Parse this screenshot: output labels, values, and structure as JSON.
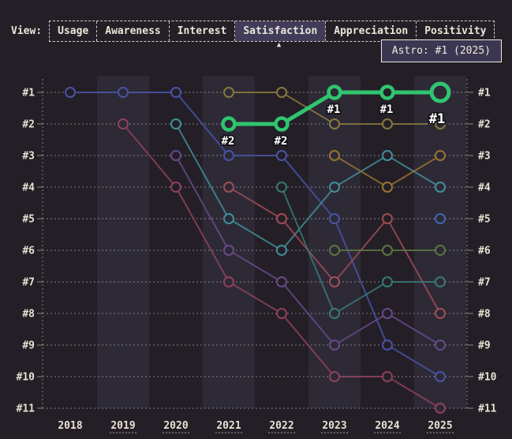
{
  "view_bar": {
    "label": "View:",
    "tabs": [
      {
        "label": "Usage",
        "selected": false
      },
      {
        "label": "Awareness",
        "selected": false
      },
      {
        "label": "Interest",
        "selected": false
      },
      {
        "label": "Satisfaction",
        "selected": true
      },
      {
        "label": "Appreciation",
        "selected": false
      },
      {
        "label": "Positivity",
        "selected": false
      }
    ],
    "pointer_glyph": "▲"
  },
  "tooltip": {
    "text": "Astro: #1 (2025)"
  },
  "colors": {
    "background": "#241f27",
    "band": "#2d2a36",
    "grid": "#cfc8bc",
    "text": "#e8e1d2",
    "selected_tab_bg": "#403c5a",
    "tooltip_bg": "#3b3752",
    "tooltip_border": "#efe8da",
    "highlight_green": "#2fc56f"
  },
  "chart_data": {
    "type": "line",
    "subtype": "bump-ranking",
    "metric": "Satisfaction",
    "x": [
      2018,
      2019,
      2020,
      2021,
      2022,
      2023,
      2024,
      2025
    ],
    "x_labels": [
      "2018",
      "2019",
      "2020",
      "2021",
      "2022",
      "2023",
      "2024",
      "2025"
    ],
    "rank_labels": [
      "#1",
      "#2",
      "#3",
      "#4",
      "#5",
      "#6",
      "#7",
      "#8",
      "#9",
      "#10",
      "#11"
    ],
    "ylim": [
      1,
      11
    ],
    "grid": "dotted horizontal per rank, dotted vertical axes, alternating year bands",
    "legend_position": "none (tooltip only)",
    "series": [
      {
        "name": "indigo",
        "color": "#4a55ae",
        "highlight": false,
        "points": [
          [
            2018,
            1
          ],
          [
            2019,
            1
          ],
          [
            2020,
            1
          ],
          [
            2021,
            3
          ],
          [
            2022,
            3
          ],
          [
            2023,
            5
          ],
          [
            2024,
            9
          ],
          [
            2025,
            10
          ]
        ]
      },
      {
        "name": "magenta",
        "color": "#95425f",
        "highlight": false,
        "points": [
          [
            2019,
            2
          ],
          [
            2020,
            4
          ],
          [
            2021,
            7
          ],
          [
            2022,
            8
          ],
          [
            2023,
            10
          ],
          [
            2024,
            10
          ],
          [
            2025,
            11
          ]
        ]
      },
      {
        "name": "teal",
        "color": "#43939e",
        "highlight": false,
        "points": [
          [
            2020,
            2
          ],
          [
            2021,
            5
          ],
          [
            2022,
            6
          ],
          [
            2023,
            4
          ],
          [
            2024,
            3
          ],
          [
            2025,
            4
          ]
        ]
      },
      {
        "name": "purple",
        "color": "#6b4b90",
        "highlight": false,
        "points": [
          [
            2020,
            3
          ],
          [
            2021,
            6
          ],
          [
            2022,
            7
          ],
          [
            2023,
            9
          ],
          [
            2024,
            8
          ],
          [
            2025,
            9
          ]
        ]
      },
      {
        "name": "olive",
        "color": "#8d7c3c",
        "highlight": false,
        "points": [
          [
            2021,
            1
          ],
          [
            2022,
            1
          ],
          [
            2023,
            2
          ],
          [
            2024,
            2
          ],
          [
            2025,
            2
          ]
        ]
      },
      {
        "name": "red",
        "color": "#a54f58",
        "highlight": false,
        "points": [
          [
            2021,
            4
          ],
          [
            2022,
            5
          ],
          [
            2023,
            7
          ],
          [
            2024,
            5
          ],
          [
            2025,
            8
          ]
        ]
      },
      {
        "name": "dark-teal",
        "color": "#377e79",
        "highlight": false,
        "points": [
          [
            2022,
            4
          ],
          [
            2023,
            8
          ],
          [
            2024,
            7
          ],
          [
            2025,
            7
          ]
        ]
      },
      {
        "name": "orange",
        "color": "#9e7631",
        "highlight": false,
        "points": [
          [
            2023,
            3
          ],
          [
            2024,
            4
          ],
          [
            2025,
            3
          ]
        ]
      },
      {
        "name": "olive-green",
        "color": "#5d7a40",
        "highlight": false,
        "points": [
          [
            2023,
            6
          ],
          [
            2024,
            6
          ],
          [
            2025,
            6
          ]
        ]
      },
      {
        "name": "steel-blue",
        "color": "#3f6cb4",
        "highlight": false,
        "points": [
          [
            2025,
            5
          ]
        ]
      },
      {
        "name": "astro",
        "color": "#2fc56f",
        "highlight": true,
        "points": [
          [
            2021,
            2
          ],
          [
            2022,
            2
          ],
          [
            2023,
            1
          ],
          [
            2024,
            1
          ],
          [
            2025,
            1
          ]
        ]
      }
    ],
    "annotations": [
      {
        "year": 2021,
        "rank": 2,
        "text": "#2",
        "big": false
      },
      {
        "year": 2022,
        "rank": 2,
        "text": "#2",
        "big": false
      },
      {
        "year": 2023,
        "rank": 1,
        "text": "#1",
        "big": false
      },
      {
        "year": 2024,
        "rank": 1,
        "text": "#1",
        "big": false
      },
      {
        "year": 2025,
        "rank": 1,
        "text": "#1",
        "big": true
      }
    ]
  }
}
